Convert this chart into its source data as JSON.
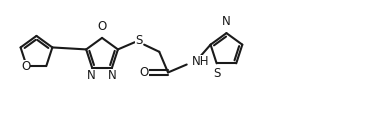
{
  "bg_color": "#ffffff",
  "line_color": "#1a1a1a",
  "line_width": 1.5,
  "font_size": 8.5,
  "fig_width": 3.79,
  "fig_height": 1.33,
  "dpi": 100,
  "xlim": [
    0,
    9.5
  ],
  "ylim": [
    0,
    3.3
  ]
}
